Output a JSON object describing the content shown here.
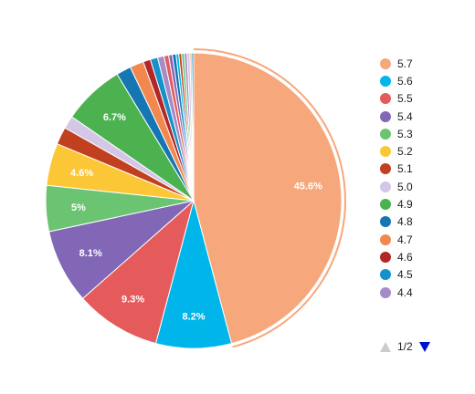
{
  "chart_data": {
    "type": "pie",
    "categories": [
      "5.7",
      "5.6",
      "5.5",
      "5.4",
      "5.3",
      "5.2",
      "5.1",
      "5.0",
      "4.9",
      "4.8",
      "4.7",
      "4.6",
      "4.5",
      "4.4"
    ],
    "values": [
      45.6,
      8.2,
      9.3,
      8.1,
      5.0,
      4.6,
      1.9,
      1.4,
      6.7,
      1.6,
      1.5,
      0.8,
      0.8,
      0.7
    ],
    "data_labels": [
      "45.6%",
      "8.2%",
      "9.3%",
      "8.1%",
      "5%",
      "4.6%",
      "",
      "",
      "6.7%",
      "",
      "",
      "",
      "",
      ""
    ],
    "other_slices": [
      0.5,
      0.4,
      0.4,
      0.3,
      0.3,
      0.3,
      0.3,
      0.3,
      0.2,
      0.2
    ],
    "colors": [
      "#f6a77c",
      "#00b5e9",
      "#e55b5b",
      "#8167b6",
      "#6ac471",
      "#fcc736",
      "#c0401f",
      "#d3c6e6",
      "#4bb24f",
      "#1576b3",
      "#f2884f",
      "#b22727",
      "#1791c9",
      "#a48cc8"
    ],
    "other_colors": [
      "#e55b5b",
      "#8167b6",
      "#1576b3",
      "#00b5e9",
      "#c0401f",
      "#6ac471",
      "#a48cc8",
      "#d3c6e6",
      "#f6a77c",
      "#1791c9"
    ],
    "selected_slice": "5.7",
    "legend_position": "right",
    "legend_page": "1/2"
  }
}
